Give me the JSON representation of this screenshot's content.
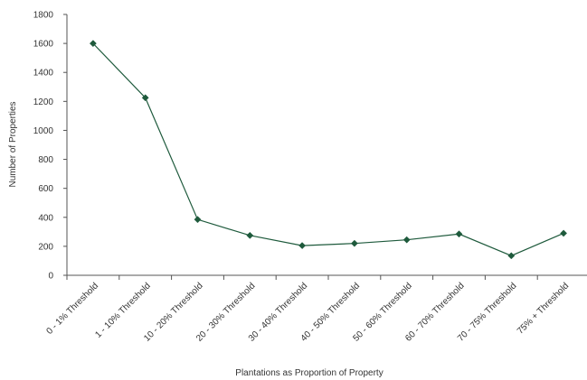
{
  "chart_data": {
    "type": "line",
    "title": "",
    "xlabel": "Plantations as Proportion of Property",
    "ylabel": "Number of Properties",
    "ylim": [
      0,
      1800
    ],
    "yticks": [
      0,
      200,
      400,
      600,
      800,
      1000,
      1200,
      1400,
      1600,
      1800
    ],
    "categories": [
      "0 - 1% Threshold",
      "1 - 10% Threshold",
      "10 - 20% Threshold",
      "20 - 30% Threshold",
      "30 - 40% Threshold",
      "40 - 50% Threshold",
      "50 - 60% Threshold",
      "60 - 70% Threshold",
      "70 - 75% Threshold",
      "75% + Threshold"
    ],
    "series": [
      {
        "values": [
          1600,
          1225,
          385,
          275,
          205,
          220,
          245,
          285,
          135,
          290
        ],
        "color": "#1e5a3c",
        "marker": "diamond"
      }
    ],
    "grid": false,
    "legend": "none"
  }
}
